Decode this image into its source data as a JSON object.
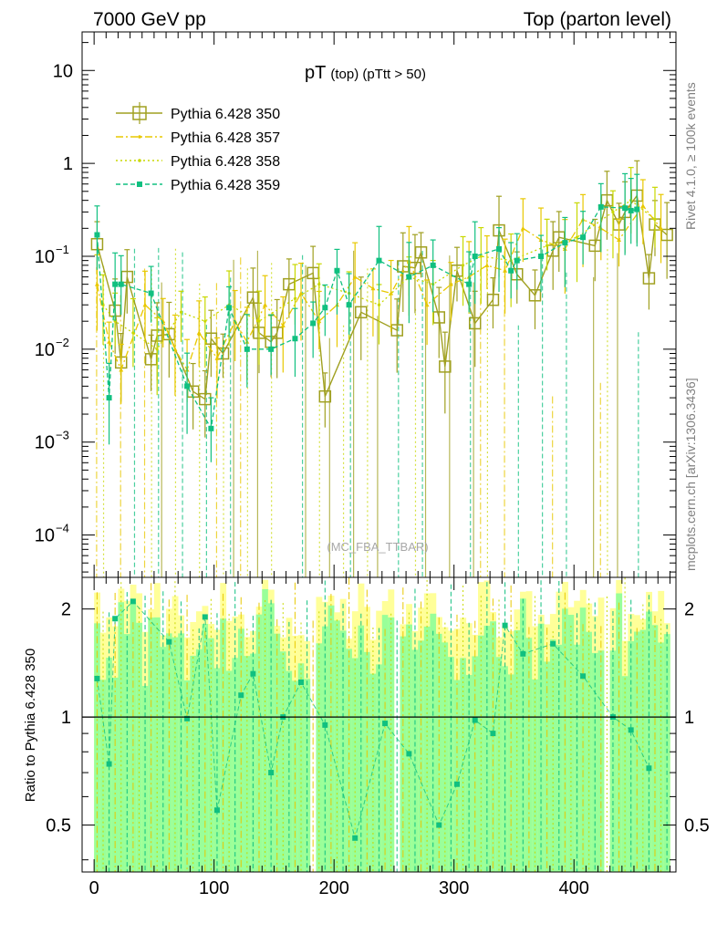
{
  "header": {
    "left": "7000 GeV pp",
    "right": "Top (parton level)"
  },
  "side_labels": {
    "top": "Rivet 4.1.0, ≥ 100k events",
    "bottom": "mcplots.cern.ch [arXiv:1306.3436]"
  },
  "colors": {
    "s350": "#a0a020",
    "s357": "#e8c800",
    "s358": "#c8d800",
    "s359": "#10c080",
    "band_yellow": "#ffff99",
    "band_green": "#99ff99"
  },
  "chart_data": [
    {
      "type": "line",
      "title_main": "pT",
      "title_sub": "(top) (pTtt > 50)",
      "watermark": "(MC_FBA_TTBAR)",
      "xlabel": "",
      "ylabel": "",
      "xlim": [
        -10,
        485
      ],
      "ylim": [
        3.5e-05,
        26
      ],
      "yscale": "log",
      "ytick_labels": [
        "10",
        "1",
        "10−1",
        "10−2",
        "10−3",
        "10−4"
      ],
      "legend_position": "top-left",
      "series": [
        {
          "name": "Pythia 6.428 350",
          "marker": "open-square",
          "x": [
            2.5,
            17.5,
            22.5,
            27.5,
            47.5,
            52.5,
            62.5,
            82.5,
            92.5,
            97.5,
            107.5,
            132.5,
            137.5,
            147.5,
            152.5,
            162.5,
            182.5,
            192.5,
            222.5,
            252.5,
            257.5,
            267.5,
            272.5,
            287.5,
            292.5,
            302.5,
            317.5,
            332.5,
            337.5,
            352.5,
            367.5,
            382.5,
            387.5,
            417.5,
            427.5,
            437.5,
            442.5,
            452.5,
            462.5,
            467.5,
            477.5
          ],
          "values": [
            0.135,
            0.026,
            0.0072,
            0.06,
            0.0078,
            0.014,
            0.0145,
            0.0035,
            0.0029,
            0.013,
            0.009,
            0.036,
            0.015,
            0.012,
            0.015,
            0.05,
            0.066,
            0.0031,
            0.025,
            0.016,
            0.078,
            0.075,
            0.11,
            0.022,
            0.0065,
            0.07,
            0.019,
            0.034,
            0.19,
            0.064,
            0.038,
            0.115,
            0.16,
            0.13,
            0.4,
            0.22,
            0.3,
            0.45,
            0.058,
            0.22,
            0.17
          ]
        },
        {
          "name": "Pythia 6.428 357",
          "marker": "small-triangle",
          "x": [
            2.5,
            12.5,
            22.5,
            42.5,
            57.5,
            67.5,
            77.5,
            87.5,
            102.5,
            117.5,
            127.5,
            142.5,
            157.5,
            172.5,
            187.5,
            202.5,
            217.5,
            232.5,
            247.5,
            262.5,
            277.5,
            297.5,
            312.5,
            327.5,
            342.5,
            357.5,
            372.5,
            392.5,
            407.5,
            422.5,
            437.5,
            457.5,
            472.5
          ],
          "values": [
            0.05,
            0.012,
            0.006,
            0.03,
            0.02,
            0.01,
            0.006,
            0.015,
            0.008,
            0.02,
            0.012,
            0.03,
            0.018,
            0.04,
            0.02,
            0.03,
            0.06,
            0.045,
            0.04,
            0.09,
            0.03,
            0.05,
            0.06,
            0.08,
            0.07,
            0.2,
            0.15,
            0.12,
            0.25,
            0.2,
            0.15,
            0.35,
            0.2
          ]
        },
        {
          "name": "Pythia 6.428 358",
          "marker": "small-dot",
          "x": [
            7.5,
            17.5,
            32.5,
            52.5,
            72.5,
            92.5,
            112.5,
            137.5,
            167.5,
            187.5,
            212.5,
            237.5,
            262.5,
            282.5,
            307.5,
            322.5,
            347.5,
            377.5,
            402.5,
            432.5,
            447.5,
            467.5
          ],
          "values": [
            0.03,
            0.02,
            0.015,
            0.01,
            0.025,
            0.02,
            0.03,
            0.02,
            0.035,
            0.05,
            0.04,
            0.03,
            0.06,
            0.05,
            0.08,
            0.1,
            0.09,
            0.13,
            0.16,
            0.3,
            0.4,
            0.25
          ]
        },
        {
          "name": "Pythia 6.428 359",
          "marker": "filled-square",
          "x": [
            2.5,
            12.5,
            17.5,
            22.5,
            47.5,
            77.5,
            97.5,
            112.5,
            127.5,
            147.5,
            167.5,
            182.5,
            192.5,
            202.5,
            212.5,
            237.5,
            262.5,
            282.5,
            312.5,
            317.5,
            337.5,
            347.5,
            352.5,
            372.5,
            392.5,
            407.5,
            422.5,
            442.5,
            447.5,
            452.5
          ],
          "values": [
            0.17,
            0.003,
            0.05,
            0.05,
            0.04,
            0.004,
            0.0014,
            0.028,
            0.01,
            0.01,
            0.013,
            0.019,
            0.028,
            0.07,
            0.03,
            0.09,
            0.06,
            0.08,
            0.05,
            0.1,
            0.12,
            0.07,
            0.09,
            0.1,
            0.14,
            0.16,
            0.34,
            0.33,
            0.31,
            0.32
          ]
        }
      ]
    },
    {
      "type": "line",
      "ylabel": "Ratio to Pythia 6.428 350",
      "xlim": [
        -10,
        485
      ],
      "ylim": [
        0.37,
        2.45
      ],
      "yscale": "log",
      "ytick_labels": [
        "2",
        "1",
        "0.5"
      ],
      "xtick_labels": [
        "0",
        "100",
        "200",
        "300",
        "400"
      ],
      "reference_line": 1,
      "series": [
        {
          "name": "Pythia 6.428 359 / Pythia 6.428 350",
          "x": [
            2.5,
            12.5,
            17.5,
            32.5,
            62.5,
            77.5,
            92.5,
            102.5,
            122.5,
            132.5,
            147.5,
            157.5,
            172.5,
            192.5,
            217.5,
            242.5,
            262.5,
            287.5,
            302.5,
            317.5,
            332.5,
            342.5,
            357.5,
            382.5,
            407.5,
            432.5,
            447.5,
            462.5
          ],
          "values": [
            1.28,
            0.74,
            1.88,
            2.1,
            1.62,
            0.99,
            1.9,
            0.55,
            1.15,
            1.32,
            0.7,
            1.0,
            1.25,
            0.95,
            0.46,
            0.96,
            0.79,
            0.5,
            0.65,
            0.98,
            0.9,
            1.8,
            1.5,
            1.6,
            1.3,
            1.0,
            0.92,
            0.72
          ]
        }
      ]
    }
  ]
}
